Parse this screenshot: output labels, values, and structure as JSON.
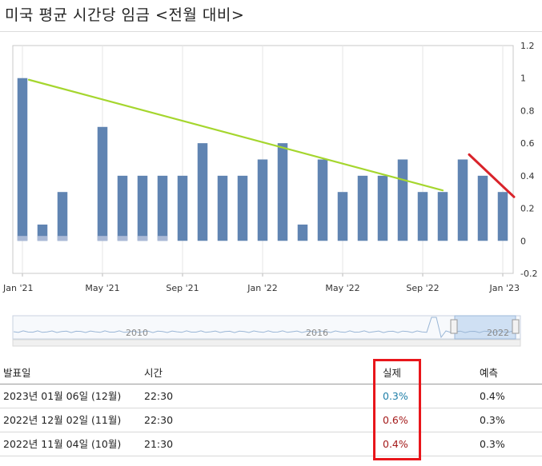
{
  "title": "미국 평균 시간당 임금 <전월 대비>",
  "chart_data": {
    "type": "bar",
    "categories": [
      "Jan '21",
      "Feb '21",
      "Mar '21",
      "Apr '21",
      "May '21",
      "Jun '21",
      "Jul '21",
      "Aug '21",
      "Sep '21",
      "Oct '21",
      "Nov '21",
      "Dec '21",
      "Jan '22",
      "Feb '22",
      "Mar '22",
      "Apr '22",
      "May '22",
      "Jun '22",
      "Jul '22",
      "Aug '22",
      "Sep '22",
      "Oct '22",
      "Nov '22",
      "Dec '22",
      "Jan '23"
    ],
    "series": [
      {
        "name": "실제",
        "values": [
          1.0,
          0.1,
          0.3,
          null,
          0.7,
          0.4,
          0.4,
          0.4,
          0.4,
          0.6,
          0.4,
          0.4,
          0.5,
          0.6,
          0.1,
          0.5,
          0.3,
          0.4,
          0.4,
          0.5,
          0.3,
          0.3,
          0.5,
          0.4,
          0.3
        ]
      },
      {
        "name": "예측",
        "values": [
          0.03,
          0.03,
          0.03,
          null,
          0.03,
          0.03,
          0.03,
          0.03,
          null,
          null,
          null,
          null,
          null,
          null,
          null,
          null,
          null,
          null,
          null,
          null,
          null,
          null,
          null,
          null,
          null
        ]
      }
    ],
    "xticks": [
      "Jan '21",
      "May '21",
      "Sep '21",
      "Jan '22",
      "May '22",
      "Sep '22",
      "Jan '23"
    ],
    "ytick_labels": [
      "1.2",
      "1",
      "0.8",
      "0.6",
      "0.4",
      "0.2",
      "0",
      "-0.2"
    ],
    "ylim": [
      -0.2,
      1.2
    ],
    "annotations": [
      {
        "type": "trendline",
        "color": "#a5d62e",
        "from": {
          "x": "Jan '21",
          "y": 0.99
        },
        "to": {
          "x": "Oct '22",
          "y": 0.31
        }
      },
      {
        "type": "trendline",
        "color": "#d9232a",
        "from": {
          "x": "Nov '22",
          "y": 0.53
        },
        "to": {
          "x": "Jan '23",
          "y": 0.27
        }
      }
    ],
    "navigator": {
      "labels": [
        "2010",
        "2016",
        "2022"
      ]
    }
  },
  "table": {
    "headers": [
      "발표일",
      "시간",
      "실제",
      "예측"
    ],
    "rows": [
      {
        "date": "2023년 01월 06일 (12월)",
        "time": "22:30",
        "actual": "0.3%",
        "actual_dir": "down",
        "forecast": "0.4%"
      },
      {
        "date": "2022년 12월 02일 (11월)",
        "time": "22:30",
        "actual": "0.6%",
        "actual_dir": "up",
        "forecast": "0.3%"
      },
      {
        "date": "2022년 11월 04일 (10월)",
        "time": "21:30",
        "actual": "0.4%",
        "actual_dir": "up",
        "forecast": "0.3%"
      }
    ]
  }
}
